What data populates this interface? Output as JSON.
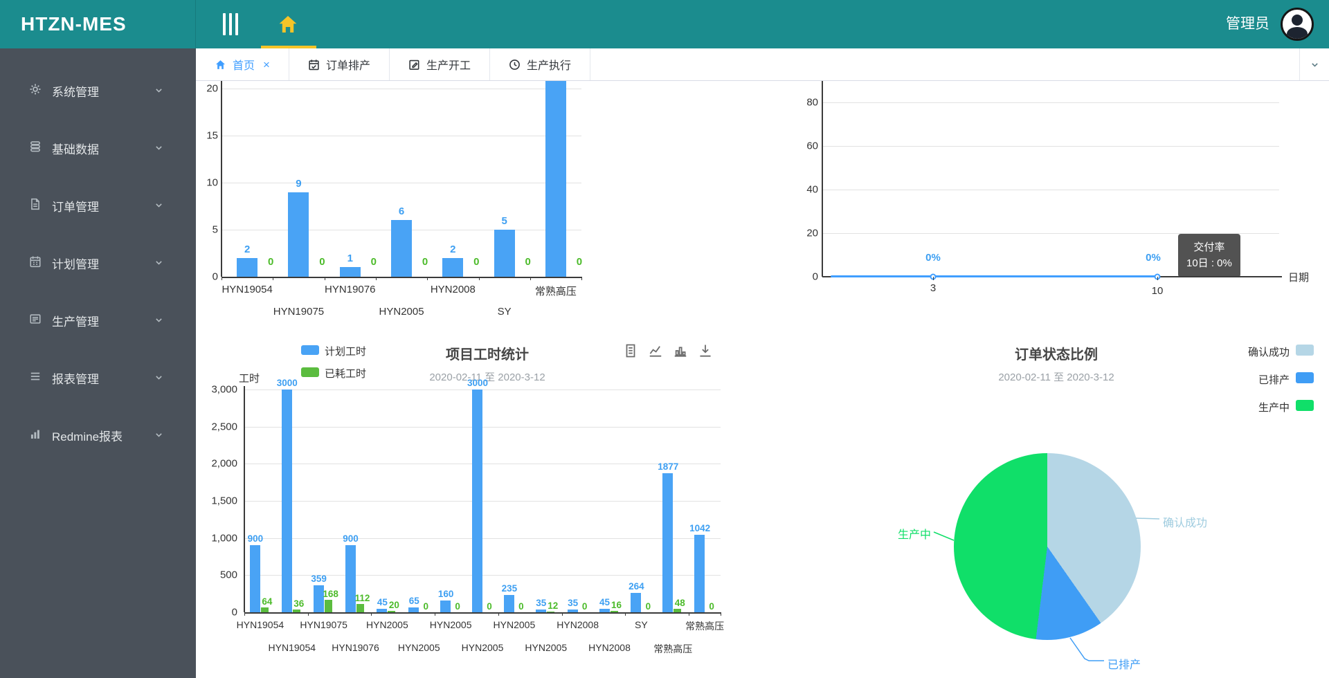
{
  "header": {
    "brand": "HTZN-MES",
    "user_name": "管理员"
  },
  "sidebar": {
    "items": [
      {
        "label": "系统管理",
        "icon": "gear-icon"
      },
      {
        "label": "基础数据",
        "icon": "database-icon"
      },
      {
        "label": "订单管理",
        "icon": "document-icon"
      },
      {
        "label": "计划管理",
        "icon": "calendar-icon"
      },
      {
        "label": "生产管理",
        "icon": "production-icon"
      },
      {
        "label": "报表管理",
        "icon": "report-icon"
      },
      {
        "label": "Redmine报表",
        "icon": "barchart-icon"
      }
    ]
  },
  "tabbar": {
    "tabs": [
      {
        "label": "首页",
        "icon": "home-icon",
        "active": true,
        "closable": true
      },
      {
        "label": "订单排产",
        "icon": "calendar-check-icon",
        "active": false,
        "closable": false
      },
      {
        "label": "生产开工",
        "icon": "edit-icon",
        "active": false,
        "closable": false
      },
      {
        "label": "生产执行",
        "icon": "history-icon",
        "active": false,
        "closable": false
      }
    ]
  },
  "colors": {
    "header_teal": "#1b8c8e",
    "sidebar_bg": "#4a515a",
    "gold_accent": "#f5c428",
    "active_blue": "#409eff",
    "series_blue": "#49a3f5",
    "series_green": "#5bbc3f",
    "label_blue": "#3d9ff2",
    "label_green": "#4cbb2a",
    "pie_lightblue": "#b5d6e6",
    "pie_blue": "#3f9df5",
    "pie_green": "#10df69"
  },
  "chart_data": [
    {
      "type": "bar",
      "position": "top-left",
      "note": "top of chart clipped by tab bar; last bar value not visible",
      "categories": [
        "HYN19054",
        "HYN19075",
        "HYN19076",
        "HYN2005",
        "HYN2008",
        "SY",
        "常熟高压"
      ],
      "series": [
        {
          "name": "blue-series",
          "values": [
            2,
            9,
            1,
            6,
            2,
            5,
            null
          ],
          "labels": [
            "2",
            "9",
            "1",
            "6",
            "2",
            "5",
            ""
          ]
        },
        {
          "name": "green-series",
          "values": [
            0,
            0,
            0,
            0,
            0,
            0,
            0
          ],
          "labels": [
            "0",
            "0",
            "0",
            "0",
            "0",
            "0",
            "0"
          ]
        }
      ],
      "yticks": [
        "0",
        "5",
        "10",
        "15",
        "20"
      ],
      "ylim": [
        0,
        20
      ]
    },
    {
      "type": "line",
      "position": "top-right",
      "x": [
        "3",
        "10"
      ],
      "values": [
        0,
        0
      ],
      "point_labels": [
        "0%",
        "0%"
      ],
      "yticks": [
        "0",
        "20",
        "40",
        "60",
        "80"
      ],
      "ylim": [
        0,
        80
      ],
      "xlabel": "日期",
      "tooltip": {
        "title": "交付率",
        "text": "10日 : 0%"
      }
    },
    {
      "type": "bar",
      "position": "bottom-left",
      "title": "项目工时统计",
      "subtitle": "2020-02-11 至 2020-3-12",
      "ylabel": "工时",
      "legend": [
        {
          "name": "计划工时",
          "color": "#49a3f5"
        },
        {
          "name": "已耗工时",
          "color": "#5bbc3f"
        }
      ],
      "categories": [
        "HYN19054",
        "HYN19054",
        "HYN19075",
        "HYN19076",
        "HYN2005",
        "HYN2005",
        "HYN2005",
        "HYN2005",
        "HYN2005",
        "HYN2005",
        "HYN2008",
        "HYN2008",
        "SY",
        "常熟高压",
        "常熟高压"
      ],
      "series": [
        {
          "name": "计划工时",
          "values": [
            900,
            3000,
            359,
            900,
            45,
            65,
            160,
            3000,
            235,
            35,
            35,
            45,
            264,
            1877,
            1042
          ]
        },
        {
          "name": "已耗工时",
          "values": [
            64,
            36,
            168,
            112,
            20,
            0,
            0,
            0,
            0,
            12,
            0,
            16,
            0,
            48,
            0
          ]
        }
      ],
      "yticks": [
        "0",
        "500",
        "1,000",
        "1,500",
        "2,000",
        "2,500",
        "3,000"
      ],
      "ylim": [
        0,
        3000
      ],
      "toolbox": [
        "data-view-icon",
        "line-chart-icon",
        "bar-chart-icon",
        "save-image-icon"
      ]
    },
    {
      "type": "pie",
      "position": "bottom-right",
      "title": "订单状态比例",
      "subtitle": "2020-02-11 至 2020-3-12",
      "legend": [
        "确认成功",
        "已排产",
        "生产中"
      ],
      "slices": [
        {
          "name": "确认成功",
          "color": "#b5d6e6",
          "angle_deg": 145,
          "pct_est": "40%"
        },
        {
          "name": "已排产",
          "color": "#3f9df5",
          "angle_deg": 42,
          "pct_est": "12%"
        },
        {
          "name": "生产中",
          "color": "#10df69",
          "angle_deg": 173,
          "pct_est": "48%"
        }
      ]
    }
  ]
}
